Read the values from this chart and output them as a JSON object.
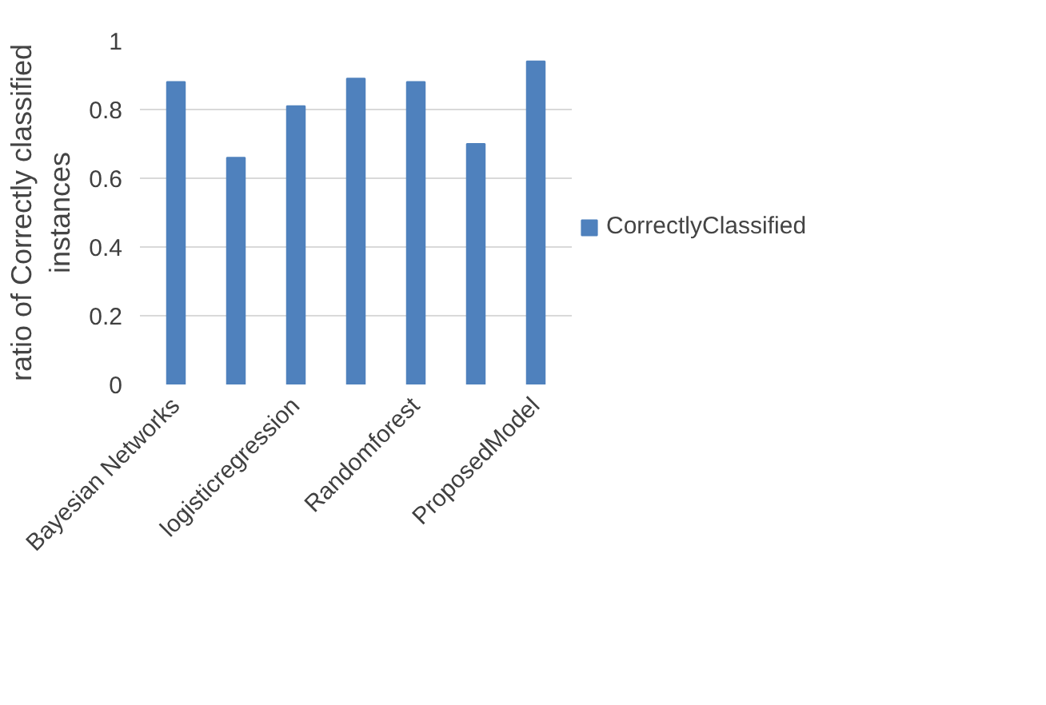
{
  "chart_data": {
    "type": "bar",
    "ylabel": "ratio of Correctly classified\ninstances",
    "categories": [
      "Bayesian Networks",
      null,
      "logisticregression",
      null,
      "Randomforest",
      null,
      "ProposedModel"
    ],
    "series": [
      {
        "name": "CorrectlyClassified",
        "color": "#4f81bd",
        "values": [
          0.88,
          0.66,
          0.81,
          0.89,
          0.88,
          0.7,
          0.94
        ]
      }
    ],
    "ylim": [
      0,
      1
    ],
    "yticks": [
      0,
      0.2,
      0.4,
      0.6,
      0.8,
      {
        "value": 1,
        "label": "1"
      }
    ],
    "grid": "y",
    "legend": "right"
  }
}
